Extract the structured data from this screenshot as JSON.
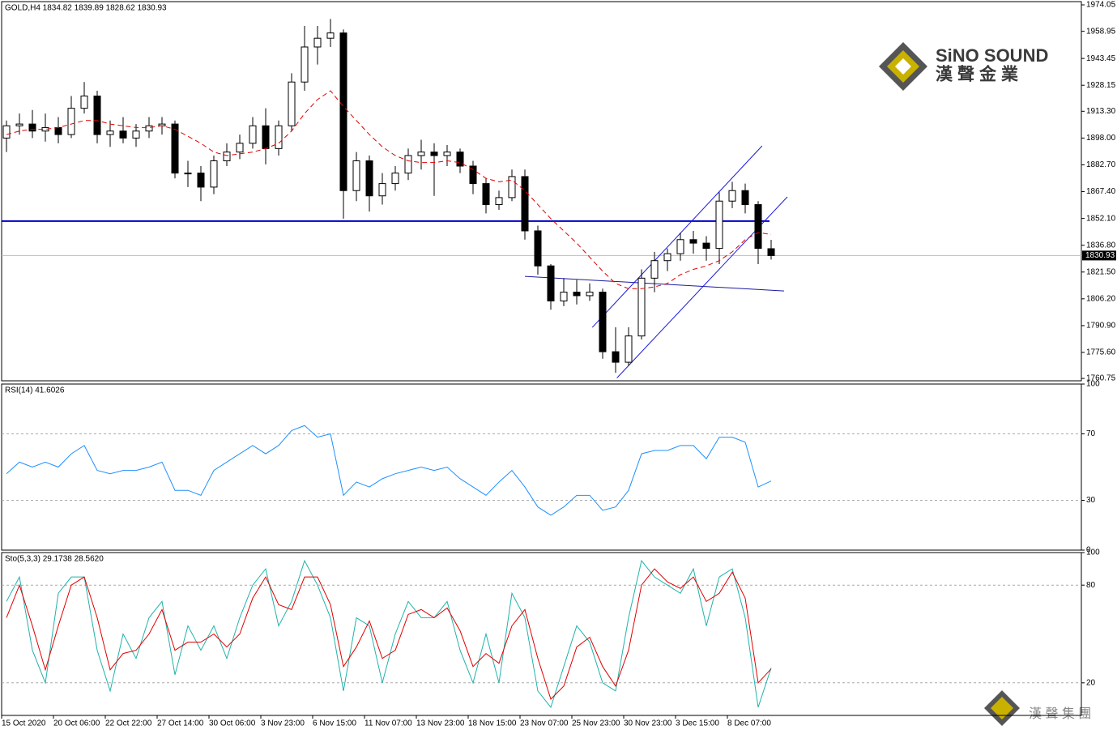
{
  "chart_data": [
    {
      "type": "candlestick",
      "title": "GOLD,H4  1834.82 1839.89 1828.62 1830.93",
      "categories": [
        "15 Oct 2020",
        null,
        null,
        null,
        "20 Oct 06:00",
        null,
        null,
        null,
        "22 Oct 22:00",
        null,
        null,
        null,
        "27 Oct 14:00",
        null,
        null,
        null,
        "30 Oct 06:00",
        null,
        null,
        null,
        "3 Nov 23:00",
        null,
        null,
        null,
        "6 Nov 15:00",
        null,
        null,
        null,
        "11 Nov 07:00",
        null,
        null,
        null,
        "13 Nov 23:00",
        null,
        null,
        null,
        "18 Nov 15:00",
        null,
        null,
        null,
        "23 Nov 07:00",
        null,
        null,
        null,
        "25 Nov 23:00",
        null,
        null,
        null,
        "30 Nov 23:00",
        null,
        null,
        null,
        "3 Dec 15:00",
        null,
        null,
        null,
        "8 Dec 07:00",
        null,
        null,
        null
      ],
      "open": [
        1898,
        1905,
        1906,
        1902,
        1904,
        1900,
        1915,
        1922,
        1900,
        1902,
        1898,
        1902,
        1905,
        1906,
        1878,
        1878,
        1870,
        1885,
        1890,
        1895,
        1905,
        1892,
        1905,
        1930,
        1950,
        1955,
        1958,
        1868,
        1885,
        1865,
        1872,
        1878,
        1888,
        1890,
        1888,
        1890,
        1882,
        1872,
        1860,
        1864,
        1876,
        1845,
        1825,
        1805,
        1810,
        1808,
        1810,
        1776,
        1770,
        1785,
        1818,
        1828,
        1832,
        1840,
        1838,
        1835,
        1862,
        1868,
        1860,
        1834.82
      ],
      "high": [
        1908,
        1912,
        1914,
        1912,
        1910,
        1922,
        1930,
        1925,
        1908,
        1910,
        1906,
        1910,
        1910,
        1908,
        1885,
        1882,
        1888,
        1895,
        1900,
        1910,
        1915,
        1908,
        1935,
        1962,
        1962,
        1966,
        1960,
        1890,
        1888,
        1878,
        1882,
        1892,
        1897,
        1895,
        1894,
        1892,
        1885,
        1875,
        1868,
        1880,
        1880,
        1848,
        1826,
        1818,
        1817,
        1815,
        1812,
        1790,
        1790,
        1823,
        1833,
        1835,
        1844,
        1845,
        1842,
        1867,
        1873,
        1872,
        1862,
        1839.89
      ],
      "low": [
        1890,
        1900,
        1898,
        1896,
        1895,
        1898,
        1912,
        1895,
        1893,
        1895,
        1893,
        1898,
        1900,
        1875,
        1870,
        1862,
        1866,
        1882,
        1886,
        1892,
        1883,
        1888,
        1902,
        1925,
        1940,
        1950,
        1852,
        1862,
        1856,
        1860,
        1868,
        1874,
        1880,
        1865,
        1882,
        1878,
        1866,
        1855,
        1857,
        1862,
        1840,
        1820,
        1800,
        1802,
        1803,
        1805,
        1772,
        1764,
        1768,
        1783,
        1810,
        1822,
        1828,
        1832,
        1828,
        1826,
        1858,
        1855,
        1826,
        1828.62
      ],
      "close": [
        1905,
        1906,
        1902,
        1904,
        1900,
        1915,
        1922,
        1900,
        1902,
        1898,
        1902,
        1905,
        1906,
        1878,
        1878,
        1870,
        1885,
        1890,
        1895,
        1905,
        1892,
        1905,
        1930,
        1950,
        1955,
        1958,
        1868,
        1885,
        1865,
        1872,
        1878,
        1888,
        1890,
        1888,
        1890,
        1882,
        1872,
        1860,
        1864,
        1876,
        1845,
        1825,
        1805,
        1810,
        1808,
        1810,
        1776,
        1770,
        1785,
        1818,
        1828,
        1832,
        1840,
        1838,
        1835,
        1862,
        1868,
        1860,
        1835,
        1830.93
      ],
      "moving_average": {
        "color": "#e00000",
        "values": [
          1900,
          1902,
          1903,
          1903,
          1904,
          1906,
          1908,
          1908,
          1906,
          1905,
          1904,
          1904,
          1905,
          1903,
          1899,
          1895,
          1890,
          1888,
          1889,
          1890,
          1892,
          1895,
          1902,
          1912,
          1920,
          1925,
          1916,
          1908,
          1900,
          1893,
          1888,
          1885,
          1884,
          1884,
          1885,
          1884,
          1880,
          1875,
          1873,
          1874,
          1868,
          1860,
          1852,
          1845,
          1838,
          1830,
          1822,
          1815,
          1812,
          1812,
          1813,
          1815,
          1820,
          1823,
          1825,
          1828,
          1833,
          1840,
          1844,
          1843
        ]
      },
      "hlines": [
        {
          "value": 1850.6,
          "color": "#0000c8"
        }
      ],
      "current_price": 1830.93,
      "trend_lines": [
        {
          "x": [
            40,
            60
          ],
          "y": [
            1819,
            1810.7
          ],
          "color": "#1a1aa0"
        },
        {
          "x": [
            47.1,
            60.25
          ],
          "y": [
            1761,
            1864.4
          ],
          "color": "#1a1ae0"
        },
        {
          "x": [
            45.2,
            58.3
          ],
          "y": [
            1789.9,
            1893.5
          ],
          "color": "#1a1ae0"
        }
      ],
      "ylim": [
        1759.4,
        1975.9
      ],
      "yticks": [
        1974.05,
        1958.95,
        1943.45,
        1928.15,
        {
          "value": 1913.3,
          "label": "1913.30"
        },
        {
          "value": 1898,
          "label": "1898.00"
        },
        {
          "value": 1882.7,
          "label": "1882.70"
        },
        {
          "value": 1867.4,
          "label": "1867.40"
        },
        {
          "value": 1852.1,
          "label": "1852.10"
        },
        {
          "value": 1836.8,
          "label": "1836.80"
        },
        {
          "value": 1821.5,
          "label": "1821.50"
        },
        {
          "value": 1806.2,
          "label": "1806.20"
        },
        {
          "value": 1790.9,
          "label": "1790.90"
        },
        {
          "value": 1775.6,
          "label": "1775.60"
        },
        1760.75
      ]
    },
    {
      "type": "line",
      "title": "RSI(14) 41.6026",
      "series": [
        {
          "color": "#1e90ff",
          "values": [
            46,
            53,
            50,
            53,
            50,
            58,
            63,
            48,
            46,
            48,
            48,
            50,
            53,
            36,
            36,
            33,
            48,
            53,
            58,
            63,
            58,
            63,
            72,
            75,
            68,
            70,
            33,
            41,
            38,
            43,
            46,
            48,
            50,
            48,
            50,
            43,
            38,
            33,
            41,
            48,
            38,
            26,
            21,
            26,
            33,
            33,
            24,
            26,
            36,
            58,
            60,
            60,
            63,
            63,
            55,
            68,
            68,
            65,
            38,
            41.6026
          ]
        }
      ],
      "ylim": [
        0,
        100
      ],
      "yticks": [
        100,
        70,
        30,
        0
      ],
      "grid_ticks": [
        70,
        30
      ]
    },
    {
      "type": "line",
      "title": "Sto(5,3,3) 29.1738 28.5620",
      "series": [
        {
          "color": "#20b2aa",
          "values": [
            70,
            85,
            40,
            20,
            75,
            85,
            85,
            40,
            15,
            50,
            35,
            60,
            70,
            25,
            55,
            40,
            55,
            35,
            60,
            80,
            90,
            55,
            70,
            95,
            80,
            60,
            15,
            60,
            55,
            20,
            50,
            70,
            60,
            60,
            70,
            40,
            20,
            50,
            20,
            75,
            60,
            15,
            5,
            30,
            55,
            45,
            20,
            15,
            60,
            95,
            85,
            80,
            75,
            90,
            55,
            85,
            90,
            60,
            5,
            29.1738
          ]
        },
        {
          "color": "#e00000",
          "values": [
            60,
            80,
            55,
            28,
            55,
            80,
            85,
            60,
            28,
            38,
            40,
            50,
            65,
            40,
            45,
            45,
            50,
            42,
            50,
            72,
            85,
            68,
            65,
            85,
            85,
            68,
            30,
            42,
            58,
            35,
            40,
            62,
            65,
            60,
            66,
            52,
            30,
            38,
            32,
            55,
            65,
            35,
            10,
            18,
            42,
            48,
            30,
            18,
            40,
            80,
            90,
            82,
            78,
            85,
            70,
            75,
            88,
            72,
            20,
            28.562
          ]
        }
      ],
      "ylim": [
        0,
        100
      ],
      "yticks": [
        100,
        80,
        20
      ],
      "grid_ticks": [
        80,
        20
      ]
    }
  ],
  "logo": {
    "name": "SiNO SOUND",
    "subname": "漢聲金業",
    "footer": "漢 聲 集 團"
  }
}
